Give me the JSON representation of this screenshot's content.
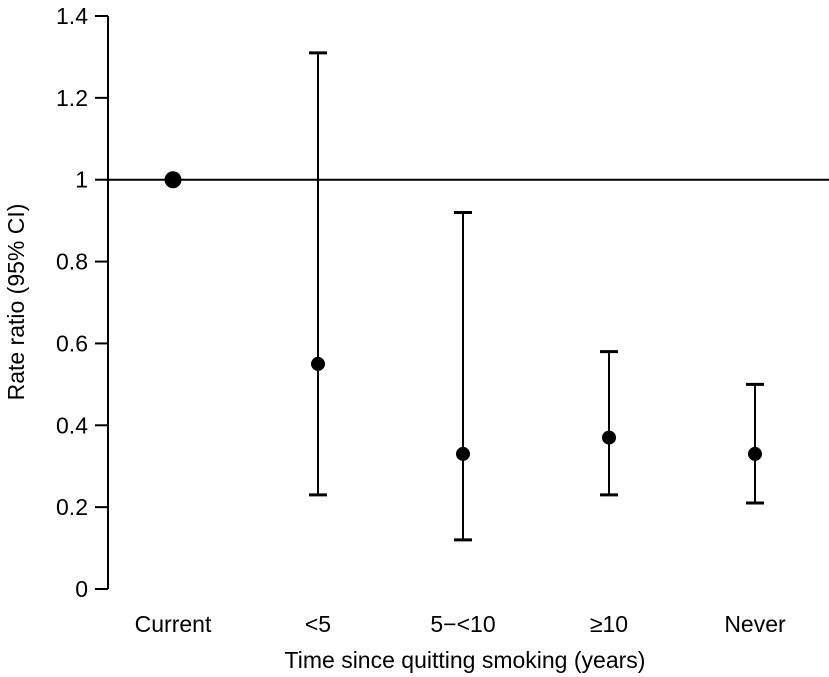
{
  "chart_data": {
    "type": "scatter",
    "xlabel": "Time since quitting smoking (years)",
    "ylabel": "Rate ratio (95% CI)",
    "ylim": [
      0,
      1.4
    ],
    "yticks": [
      0,
      0.2,
      0.4,
      0.6,
      0.8,
      1,
      1.2,
      1.4
    ],
    "ytick_labels": [
      "0",
      "0.2",
      "0.4",
      "0.6",
      "0.8",
      "1",
      "1.2",
      "1.4"
    ],
    "categories": [
      "Current",
      "<5",
      "5−<10",
      "≥10",
      "Never"
    ],
    "points": [
      {
        "category": "Current",
        "value": 1.0,
        "lower": null,
        "upper": null
      },
      {
        "category": "<5",
        "value": 0.55,
        "lower": 0.23,
        "upper": 1.31
      },
      {
        "category": "5−<10",
        "value": 0.33,
        "lower": 0.12,
        "upper": 0.92
      },
      {
        "category": "≥10",
        "value": 0.37,
        "lower": 0.23,
        "upper": 0.58
      },
      {
        "category": "Never",
        "value": 0.33,
        "lower": 0.21,
        "upper": 0.5
      }
    ],
    "reference_line": 1,
    "grid": false,
    "colors": {
      "marks": "#000000",
      "background": "#ffffff"
    }
  }
}
